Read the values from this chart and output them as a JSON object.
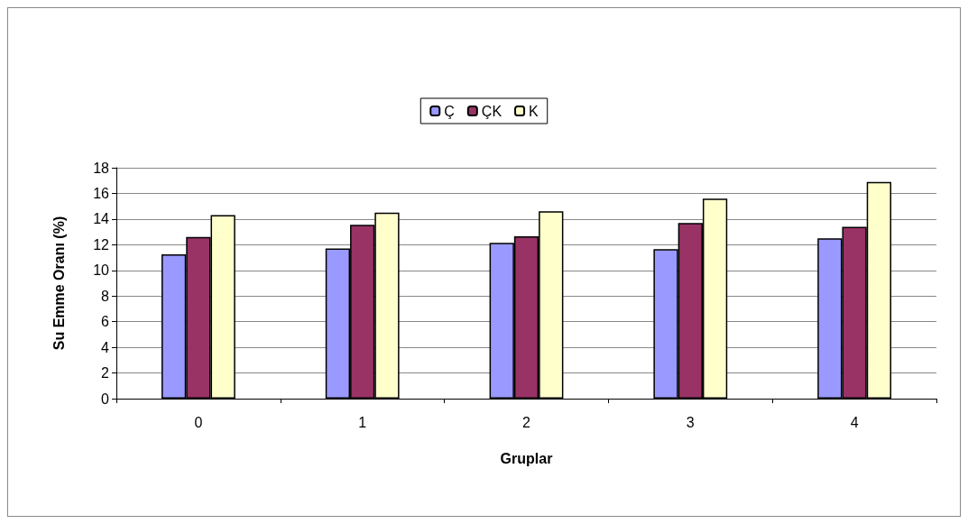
{
  "chart_data": {
    "type": "bar",
    "xlabel": "Gruplar",
    "ylabel": "Su Emme Oranı (%)",
    "categories": [
      "0",
      "1",
      "2",
      "3",
      "4"
    ],
    "series": [
      {
        "name": "Ç",
        "color": "#9999ff",
        "values": [
          11.25,
          11.7,
          12.15,
          11.65,
          12.5
        ]
      },
      {
        "name": "ÇK",
        "color": "#993366",
        "values": [
          12.6,
          13.55,
          12.65,
          13.7,
          13.4
        ]
      },
      {
        "name": "K",
        "color": "#ffffcc",
        "values": [
          14.3,
          14.5,
          14.6,
          15.6,
          16.9
        ]
      }
    ],
    "ylim": [
      0,
      18
    ],
    "yticks": [
      0,
      2,
      4,
      6,
      8,
      10,
      12,
      14,
      16,
      18
    ],
    "grid": "y",
    "legend": "top"
  }
}
